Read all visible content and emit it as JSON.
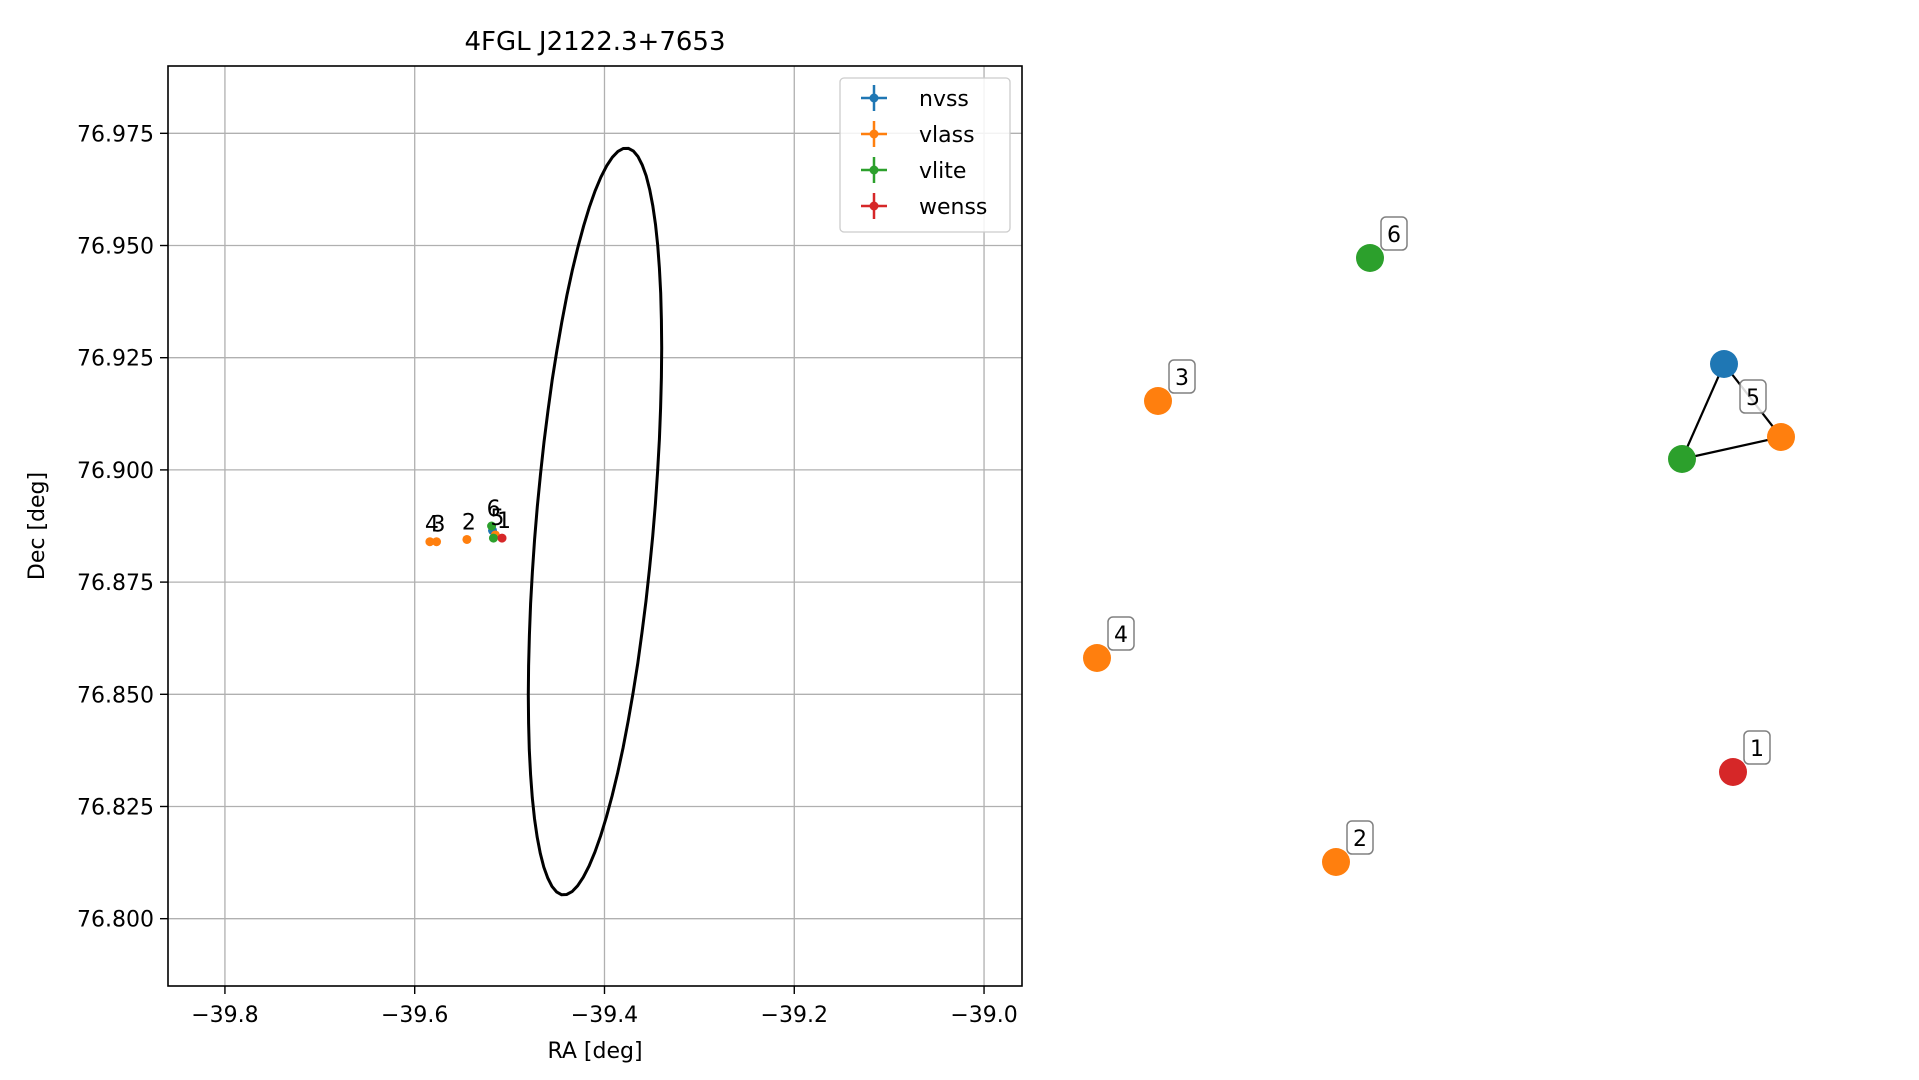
{
  "chart_data": [
    {
      "type": "scatter",
      "title": "4FGL J2122.3+7653",
      "xlabel": "RA [deg]",
      "ylabel": "Dec [deg]",
      "xlim": [
        -39.86,
        -38.96
      ],
      "ylim": [
        76.785,
        76.99
      ],
      "xticks": [
        -39.8,
        -39.6,
        -39.4,
        -39.2,
        -39.0
      ],
      "xtick_labels": [
        "−39.8",
        "−39.6",
        "−39.4",
        "−39.2",
        "−39.0"
      ],
      "yticks": [
        76.8,
        76.825,
        76.85,
        76.875,
        76.9,
        76.925,
        76.95,
        76.975
      ],
      "ytick_labels": [
        "76.800",
        "76.825",
        "76.850",
        "76.875",
        "76.900",
        "76.925",
        "76.950",
        "76.975"
      ],
      "grid": true,
      "legend_position": "top-right",
      "series": [
        {
          "name": "nvss",
          "color": "#1f77b4",
          "points": [
            {
              "x": -39.518,
              "y": 76.8865,
              "label": ""
            }
          ]
        },
        {
          "name": "vlass",
          "color": "#ff7f0e",
          "points": [
            {
              "x": -39.545,
              "y": 76.8845,
              "label": "2"
            },
            {
              "x": -39.577,
              "y": 76.884,
              "label": "3"
            },
            {
              "x": -39.584,
              "y": 76.884,
              "label": "4"
            },
            {
              "x": -39.515,
              "y": 76.8855,
              "label": "5"
            }
          ]
        },
        {
          "name": "vlite",
          "color": "#2ca02c",
          "points": [
            {
              "x": -39.517,
              "y": 76.8848,
              "label": ""
            },
            {
              "x": -39.519,
              "y": 76.8875,
              "label": "6"
            }
          ]
        },
        {
          "name": "wenss",
          "color": "#d62728",
          "points": [
            {
              "x": -39.508,
              "y": 76.8848,
              "label": "1"
            }
          ]
        }
      ],
      "ellipse": {
        "center": [
          -39.41,
          76.8885
        ],
        "semi_major": 0.094,
        "semi_minor": 0.055,
        "angle_deg": 55,
        "color": "#000000"
      }
    },
    {
      "type": "network",
      "nodes": [
        {
          "label": "6",
          "color": "#2ca02c"
        },
        {
          "label": "3",
          "color": "#ff7f0e"
        },
        {
          "label": "",
          "color": "#1f77b4"
        },
        {
          "label": "5",
          "color": "#ff7f0e"
        },
        {
          "label": "",
          "color": "#2ca02c"
        },
        {
          "label": "4",
          "color": "#ff7f0e"
        },
        {
          "label": "1",
          "color": "#d62728"
        },
        {
          "label": "2",
          "color": "#ff7f0e"
        }
      ],
      "edges": [
        [
          2,
          3
        ],
        [
          2,
          4
        ],
        [
          3,
          4
        ]
      ]
    }
  ]
}
